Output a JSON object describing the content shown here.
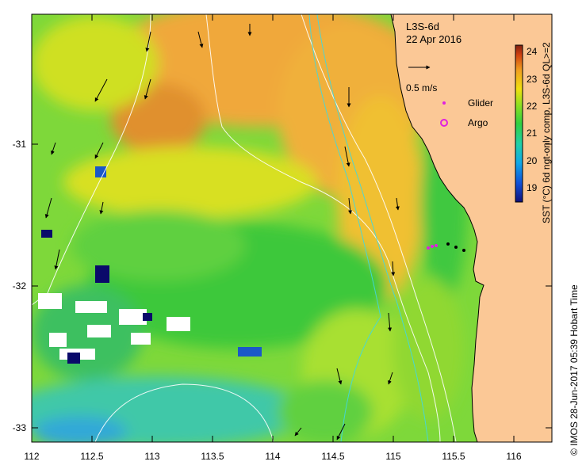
{
  "map": {
    "product": "L3S-6d",
    "date": "22 Apr 2016",
    "vector_scale_label": "0.5 m/s",
    "legend": {
      "glider_label": "Glider",
      "argo_label": "Argo"
    },
    "x_ticks": [
      "112",
      "112.5",
      "113",
      "113.5",
      "114",
      "114.5",
      "115",
      "115.5",
      "116"
    ],
    "y_ticks": [
      "-31",
      "-32",
      "-33"
    ],
    "colors": {
      "land": "#fbc896",
      "glider": "#e020e0",
      "argo": "#e020e0",
      "missing": "#ffffff"
    }
  },
  "colorbar": {
    "ticks": [
      "24",
      "23",
      "22",
      "21",
      "20",
      "19"
    ],
    "label": "SST (°C) 6d ngt-only comp, L3S-6d QL>=2",
    "range": [
      18.5,
      24.3
    ]
  },
  "credit": "© IMOS 28-Jun-2017 05:39 Hobart Time"
}
